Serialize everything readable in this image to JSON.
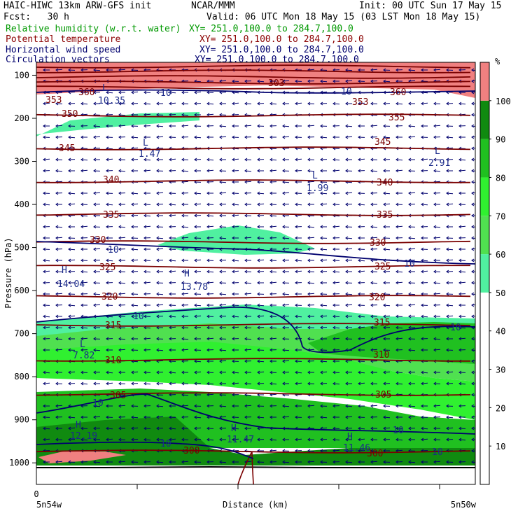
{
  "header": {
    "title_left": "HAIC-HIWC 13km ARW-GFS init",
    "center_org": "NCAR/MMM",
    "init": "Init: 00 UTC Sun 17 May 15",
    "fcst": "Fcst:   30 h",
    "valid": "Valid: 06 UTC Mon 18 May 15 (03 LST Mon 18 May 15)"
  },
  "fields": [
    {
      "name": "Relative humidity (w.r.t. water)",
      "xy": "XY= 251.0,100.0 to 284.7,100.0",
      "color": "#009900"
    },
    {
      "name": "Potential temperature",
      "xy": "XY= 251.0,100.0 to 284.7,100.0",
      "color": "#8b0000"
    },
    {
      "name": "Horizontal wind speed",
      "xy": "XY= 251.0,100.0 to 284.7,100.0",
      "color": "#00006e"
    },
    {
      "name": "Circulation vectors",
      "xy": "XY= 251.0,100.0 to 284.7,100.0",
      "color": "#00006e"
    }
  ],
  "chart_data": {
    "type": "heatmap",
    "xlabel": "Distance (km)",
    "ylabel": "Pressure (hPa)",
    "x_start_tick": "0",
    "x_endpoints": [
      "5n54w",
      "5n50w"
    ],
    "y_ticks": [
      100,
      200,
      300,
      400,
      500,
      600,
      700,
      800,
      900,
      1000
    ],
    "ylim": [
      1050,
      70
    ],
    "colorbar": {
      "unit": "%",
      "ticks": [
        10,
        20,
        30,
        40,
        50,
        60,
        70,
        80,
        90,
        100
      ],
      "shaded": [
        {
          "from": 50,
          "to": 60,
          "color": "#50f0a0"
        },
        {
          "from": 60,
          "to": 70,
          "color": "#50e050"
        },
        {
          "from": 70,
          "to": 80,
          "color": "#30f030"
        },
        {
          "from": 80,
          "to": 90,
          "color": "#20c020"
        },
        {
          "from": 90,
          "to": 100,
          "color": "#108a10"
        },
        {
          "from": 100,
          "to": 110,
          "color": "#f08080"
        }
      ]
    },
    "theta_labels": [
      "360",
      "355",
      "350",
      "345",
      "340",
      "335",
      "330",
      "325",
      "320",
      "315",
      "310",
      "305",
      "300",
      "303",
      "353"
    ],
    "wind_labels": [
      "10"
    ],
    "extrema": [
      {
        "type": "L",
        "value": "10.35"
      },
      {
        "type": "L",
        "value": "1.47"
      },
      {
        "type": "L",
        "value": "2.91"
      },
      {
        "type": "L",
        "value": "1.99"
      },
      {
        "type": "H",
        "value": "14.04"
      },
      {
        "type": "H",
        "value": "13.78"
      },
      {
        "type": "L",
        "value": "7.82"
      },
      {
        "type": "H",
        "value": "12.19"
      },
      {
        "type": "H",
        "value": "11.47"
      },
      {
        "type": "H",
        "value": "11.46"
      }
    ]
  }
}
